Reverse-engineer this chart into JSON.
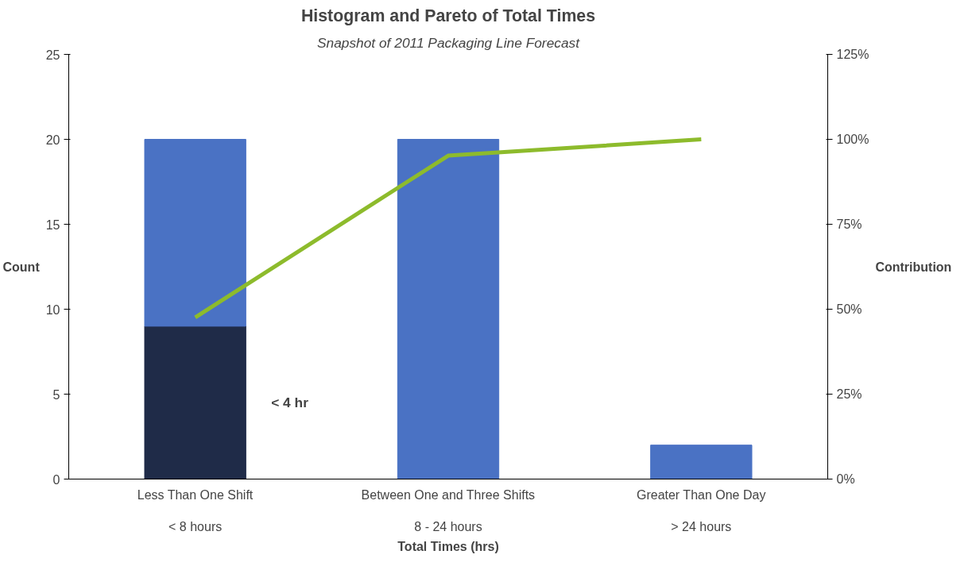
{
  "chart_data": {
    "type": "bar",
    "stacked": true,
    "title": "Histogram and Pareto of Total Times",
    "subtitle": "Snapshot of 2011 Packaging Line Forecast",
    "xlabel": "Total Times (hrs)",
    "ylabel": "Count",
    "y2label": "Contribution",
    "categories": [
      "Less Than One Shift\n\n< 8 hours",
      "Between One and Three Shifts\n\n8 - 24 hours",
      "Greater Than One Day\n\n> 24 hours"
    ],
    "series": [
      {
        "color": "#1f2b48",
        "values": [
          9,
          null,
          null
        ]
      },
      {
        "color": "#4a72c4",
        "values": [
          11,
          20,
          2
        ]
      },
      {
        "type": "line",
        "axis": "y2",
        "color": "#8dbb2c",
        "values": [
          47.6,
          95.2,
          100
        ]
      }
    ],
    "ylim": [
      0,
      25
    ],
    "yticks": [
      0,
      5,
      10,
      15,
      20,
      25
    ],
    "y2lim": [
      0,
      125
    ],
    "y2ticks": [
      {
        "value": 0,
        "label": "0%"
      },
      {
        "value": 25,
        "label": "25%"
      },
      {
        "value": 50,
        "label": "50%"
      },
      {
        "value": 75,
        "label": "75%"
      },
      {
        "value": 100,
        "label": "100%"
      },
      {
        "value": 125,
        "label": "125%"
      }
    ],
    "annotations": [
      "< 4 hr"
    ],
    "grid": false
  }
}
